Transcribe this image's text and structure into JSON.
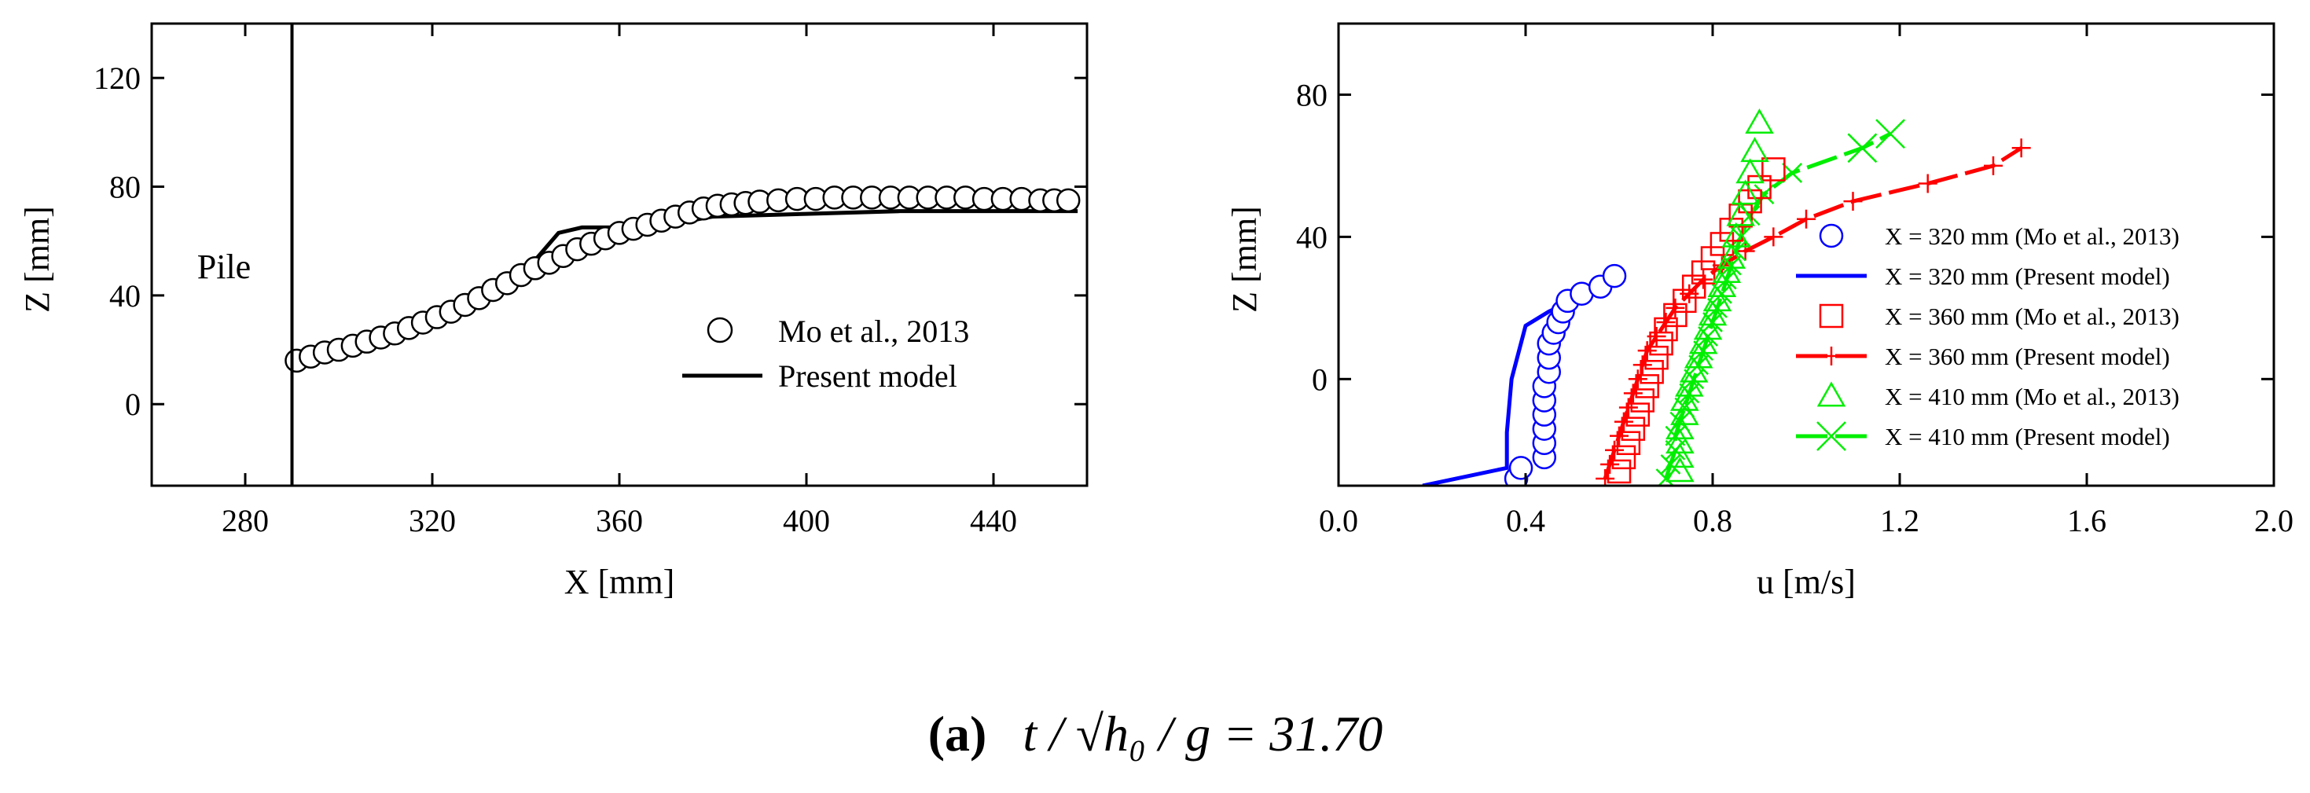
{
  "caption": {
    "label": "(a)",
    "expression": "t / √h₀ / g = 31.70"
  },
  "chart_data": [
    {
      "type": "scatter",
      "xlabel": "X [mm]",
      "ylabel": "Z [mm]",
      "xlim": [
        260,
        460
      ],
      "ylim": [
        -30,
        140
      ],
      "xticks": [
        "280",
        "320",
        "360",
        "400",
        "440"
      ],
      "yticks": [
        "0",
        "40",
        "80",
        "120"
      ],
      "pile_x": 290,
      "pile_label": "Pile",
      "legend_position": "lower-right",
      "series": [
        {
          "name": "Mo et al., 2013",
          "marker": "open-circle",
          "color": "#000000",
          "x": [
            291,
            294,
            297,
            300,
            303,
            306,
            309,
            312,
            315,
            318,
            321,
            324,
            327,
            330,
            333,
            336,
            339,
            342,
            345,
            348,
            351,
            354,
            357,
            360,
            363,
            366,
            369,
            372,
            375,
            378,
            381,
            384,
            387,
            390,
            394,
            398,
            402,
            406,
            410,
            414,
            418,
            422,
            426,
            430,
            434,
            438,
            442,
            446,
            450,
            453,
            456
          ],
          "y": [
            16,
            17.5,
            19,
            20,
            21.5,
            23,
            24.5,
            26,
            28,
            30,
            32,
            34,
            36.5,
            39,
            42,
            44.5,
            47.5,
            50,
            52,
            54.5,
            57,
            59,
            61,
            63,
            64.5,
            66,
            67.5,
            69,
            70.5,
            72,
            73,
            73.5,
            74,
            74.5,
            75,
            75.5,
            75.5,
            76,
            76,
            76,
            76,
            76,
            76,
            76,
            76,
            75.5,
            75.5,
            75.5,
            75,
            75,
            75
          ]
        },
        {
          "name": "Present model",
          "marker": "line",
          "color": "#000000",
          "x": [
            291,
            300,
            310,
            320,
            330,
            338,
            342,
            347,
            352,
            360,
            370,
            380,
            400,
            420,
            440,
            458
          ],
          "y": [
            16,
            20,
            24,
            29,
            37,
            47,
            53,
            63,
            65,
            65,
            66,
            69,
            70,
            71,
            71,
            71
          ]
        }
      ]
    },
    {
      "type": "line",
      "xlabel": "u [m/s]",
      "ylabel": "Z [mm]",
      "xlim": [
        0.0,
        2.0
      ],
      "ylim": [
        -30,
        100
      ],
      "xticks": [
        "0.0",
        "0.4",
        "0.8",
        "1.2",
        "1.6",
        "2.0"
      ],
      "yticks": [
        "0",
        "40",
        "80"
      ],
      "legend_position": "right",
      "series": [
        {
          "name": "X = 320 mm (Mo et al., 2013)",
          "marker": "open-circle",
          "color": "#0000ff",
          "x": [
            0.38,
            0.39,
            0.44,
            0.44,
            0.44,
            0.44,
            0.44,
            0.44,
            0.45,
            0.45,
            0.45,
            0.46,
            0.47,
            0.48,
            0.49,
            0.52,
            0.56,
            0.59
          ],
          "y": [
            -28,
            -25,
            -22,
            -18,
            -14,
            -10,
            -6,
            -2,
            2,
            6,
            10,
            13,
            16,
            19,
            22,
            24,
            26,
            29
          ]
        },
        {
          "name": "X = 320 mm (Present model)",
          "marker": "line",
          "color": "#0000ff",
          "x": [
            0.18,
            0.36,
            0.36,
            0.37,
            0.38,
            0.4,
            0.45,
            0.5,
            0.56
          ],
          "y": [
            -30,
            -25,
            -15,
            0,
            5,
            15,
            19,
            22,
            25
          ]
        },
        {
          "name": "X = 360 mm (Mo et al., 2013)",
          "marker": "open-square",
          "color": "#ff0000",
          "x": [
            0.6,
            0.61,
            0.62,
            0.63,
            0.64,
            0.65,
            0.66,
            0.67,
            0.68,
            0.69,
            0.7,
            0.72,
            0.74,
            0.76,
            0.78,
            0.8,
            0.82,
            0.84,
            0.86,
            0.88,
            0.9,
            0.93
          ],
          "y": [
            -26,
            -22,
            -18,
            -14,
            -10,
            -6,
            -2,
            2,
            6,
            10,
            14,
            18,
            22,
            26,
            30,
            34,
            38,
            42,
            46,
            50,
            54,
            59
          ]
        },
        {
          "name": "X = 360 mm (Present model)",
          "marker": "line-plus",
          "color": "#ff0000",
          "x": [
            0.57,
            0.58,
            0.59,
            0.6,
            0.61,
            0.62,
            0.63,
            0.64,
            0.65,
            0.66,
            0.68,
            0.7,
            0.72,
            0.75,
            0.78,
            0.82,
            0.87,
            0.93,
            1.0,
            1.1,
            1.26,
            1.4,
            1.46
          ],
          "y": [
            -28,
            -24,
            -20,
            -16,
            -12,
            -8,
            -4,
            0,
            4,
            8,
            12,
            16,
            20,
            24,
            28,
            32,
            36,
            40,
            45,
            50,
            55,
            60,
            65
          ]
        },
        {
          "name": "X = 410 mm (Mo et al., 2013)",
          "marker": "open-triangle",
          "color": "#00ee00",
          "x": [
            0.73,
            0.73,
            0.73,
            0.73,
            0.74,
            0.74,
            0.75,
            0.76,
            0.77,
            0.78,
            0.79,
            0.8,
            0.81,
            0.82,
            0.83,
            0.84,
            0.85,
            0.86,
            0.87,
            0.88,
            0.89,
            0.9
          ],
          "y": [
            -26,
            -22,
            -18,
            -14,
            -10,
            -6,
            -2,
            2,
            6,
            10,
            14,
            18,
            22,
            26,
            30,
            34,
            40,
            46,
            52,
            58,
            64,
            72
          ]
        },
        {
          "name": "X = 410 mm (Present model)",
          "marker": "line-cross",
          "color": "#00ee00",
          "x": [
            0.7,
            0.71,
            0.72,
            0.72,
            0.73,
            0.74,
            0.75,
            0.76,
            0.77,
            0.78,
            0.79,
            0.8,
            0.81,
            0.82,
            0.83,
            0.84,
            0.85,
            0.86,
            0.88,
            0.91,
            0.97,
            1.12,
            1.18
          ],
          "y": [
            -28,
            -24,
            -20,
            -16,
            -12,
            -8,
            -4,
            0,
            4,
            8,
            12,
            16,
            20,
            24,
            28,
            32,
            36,
            40,
            46,
            52,
            58,
            65,
            69
          ]
        }
      ]
    }
  ]
}
